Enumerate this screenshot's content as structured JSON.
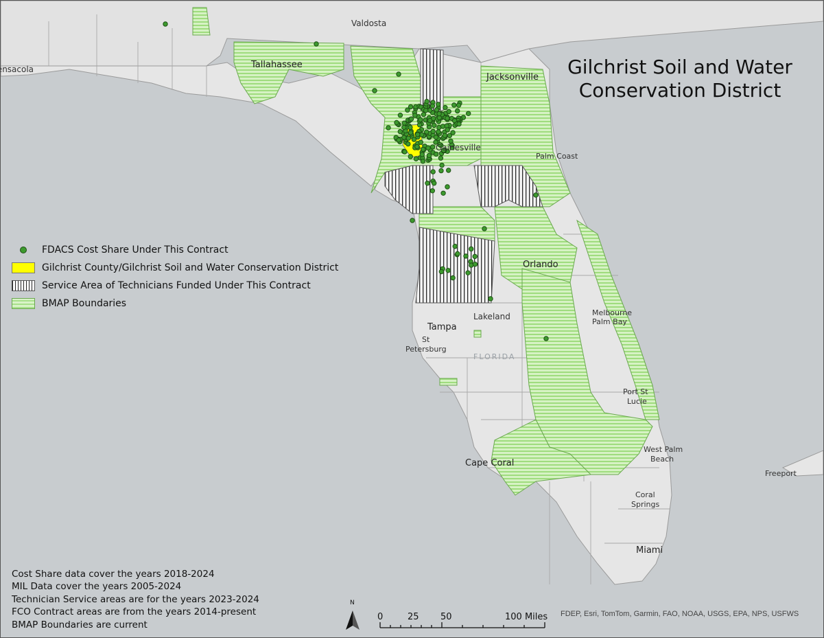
{
  "title": {
    "line1": "Gilchrist Soil and Water",
    "line2": "Conservation District"
  },
  "legend": {
    "items": [
      {
        "label": "FDACS Cost Share Under This Contract",
        "icon": "green-point"
      },
      {
        "label": "Gilchrist County/Gilchrist Soil and Water Conservation District",
        "icon": "yellow-fill"
      },
      {
        "label": "Service Area of Technicians Funded Under This Contract",
        "icon": "vertical-hatch"
      },
      {
        "label": "BMAP Boundaries",
        "icon": "green-horizontal-hatch"
      }
    ]
  },
  "notes": [
    "Cost  Share data cover the years 2018-2024",
    "MIL Data cover the years 2005-2024",
    "Technician Service areas are for the years 2023-2024",
    "FCO Contract areas are from the years 2014-present",
    "BMAP Boundaries are current"
  ],
  "scale": {
    "labels": [
      "0",
      "25",
      "50",
      "100 Miles"
    ],
    "north": "N"
  },
  "attribution": "FDEP, Esri, TomTom, Garmin, FAO, NOAA, USGS, EPA, NPS, USFWS",
  "places": {
    "valdosta": "Valdosta",
    "pensacola": "Pensacola",
    "tallahassee": "Tallahassee",
    "jacksonville": "Jacksonville",
    "gainesville": "Gainesville",
    "palm_coast": "Palm Coast",
    "orlando": "Orlando",
    "lakeland": "Lakeland",
    "tampa": "Tampa",
    "st": "St",
    "petersburg": "Petersburg",
    "florida": "FLORIDA",
    "melbourne": "Melbourne",
    "palm_bay": "Palm Bay",
    "port_st": "Port St",
    "lucie": "Lucie",
    "cape_coral": "Cape Coral",
    "west_palm": "West Palm",
    "beach": "Beach",
    "freeport": "Freeport",
    "coral": "Coral",
    "springs": "Springs",
    "miami": "Miami"
  },
  "colors": {
    "water": "#c8cccf",
    "land": "#e6e6e6",
    "bmap_green": "#a8e08a",
    "county_yellow": "#ffff00",
    "point_green": "#3d9a2e"
  }
}
